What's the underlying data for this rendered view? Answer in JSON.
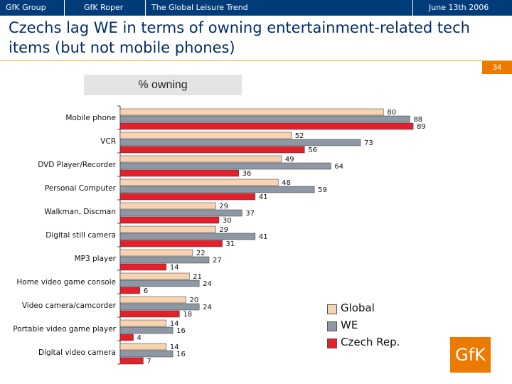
{
  "header": {
    "tabs": [
      "GfK Group",
      "GfK Roper",
      "The Global Leisure Trend"
    ],
    "date": "June 13th 2006"
  },
  "slide": {
    "title": "Czechs lag WE in terms of owning entertainment-related tech items (but not mobile phones)",
    "page_number": "34",
    "logo_text": "GfK"
  },
  "chart_data": {
    "type": "bar",
    "orientation": "horizontal",
    "subtitle": "% owning",
    "categories": [
      "Mobile phone",
      "VCR",
      "DVD Player/Recorder",
      "Personal Computer",
      "Walkman, Discman",
      "Digital still camera",
      "MP3 player",
      "Home video game console",
      "Video camera/camcorder",
      "Portable video game player",
      "Digital video camera"
    ],
    "series": [
      {
        "name": "Global",
        "color": "#f8d3b2",
        "values": [
          80,
          52,
          49,
          48,
          29,
          29,
          22,
          21,
          20,
          14,
          14
        ]
      },
      {
        "name": "WE",
        "color": "#8d98a4",
        "values": [
          88,
          73,
          64,
          59,
          37,
          41,
          27,
          24,
          24,
          16,
          16
        ]
      },
      {
        "name": "Czech Rep.",
        "color": "#e5202b",
        "values": [
          89,
          56,
          36,
          41,
          30,
          31,
          14,
          6,
          18,
          4,
          7
        ]
      }
    ],
    "xlim": [
      0,
      100
    ],
    "legend_position": "bottom-right",
    "grid": false
  }
}
